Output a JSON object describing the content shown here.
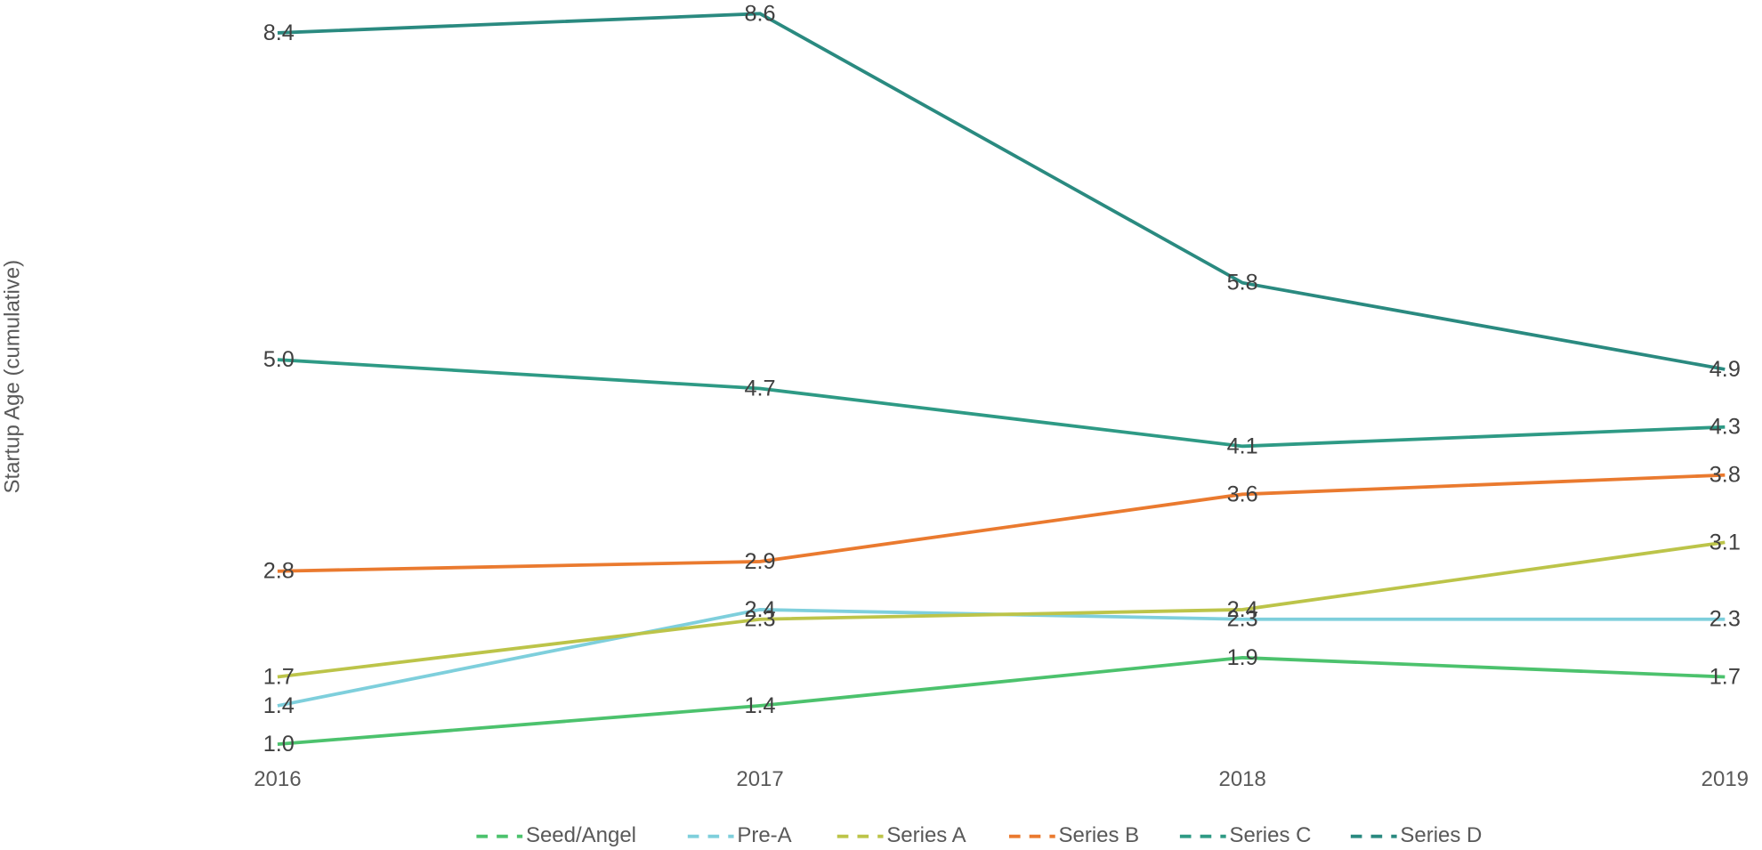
{
  "chart_data": {
    "type": "line",
    "y_label": "Startup Age (cumulative)",
    "categories": [
      "2016",
      "2017",
      "2018",
      "2019"
    ],
    "ylim": [
      1,
      8.6
    ],
    "series": [
      {
        "name": "Seed/Angel",
        "color": "#4cc26d",
        "values": [
          1.0,
          1.4,
          1.9,
          1.7
        ],
        "value_labels": [
          "1.0",
          "1.4",
          "1.9",
          "1.7"
        ]
      },
      {
        "name": "Pre-A",
        "color": "#7ecfdc",
        "values": [
          1.4,
          2.4,
          2.3,
          2.3
        ],
        "value_labels": [
          "1.4",
          "2.4",
          "2.3",
          "2.3"
        ]
      },
      {
        "name": "Series A",
        "color": "#bcc449",
        "values": [
          1.7,
          2.3,
          2.4,
          3.1
        ],
        "value_labels": [
          "1.7",
          "2.3",
          "2.4",
          "3.1"
        ]
      },
      {
        "name": "Series B",
        "color": "#ea7a2f",
        "values": [
          2.8,
          2.9,
          3.6,
          3.8
        ],
        "value_labels": [
          "2.8",
          "2.9",
          "3.6",
          "3.8"
        ]
      },
      {
        "name": "Series C",
        "color": "#2e9a85",
        "values": [
          5.0,
          4.7,
          4.1,
          4.3
        ],
        "value_labels": [
          "5.0",
          "4.7",
          "4.1",
          "4.3"
        ]
      },
      {
        "name": "Series D",
        "color": "#2a8a80",
        "values": [
          8.4,
          8.6,
          5.8,
          4.9
        ],
        "value_labels": [
          "8.4",
          "8.6",
          "5.8",
          "4.9"
        ]
      }
    ]
  }
}
